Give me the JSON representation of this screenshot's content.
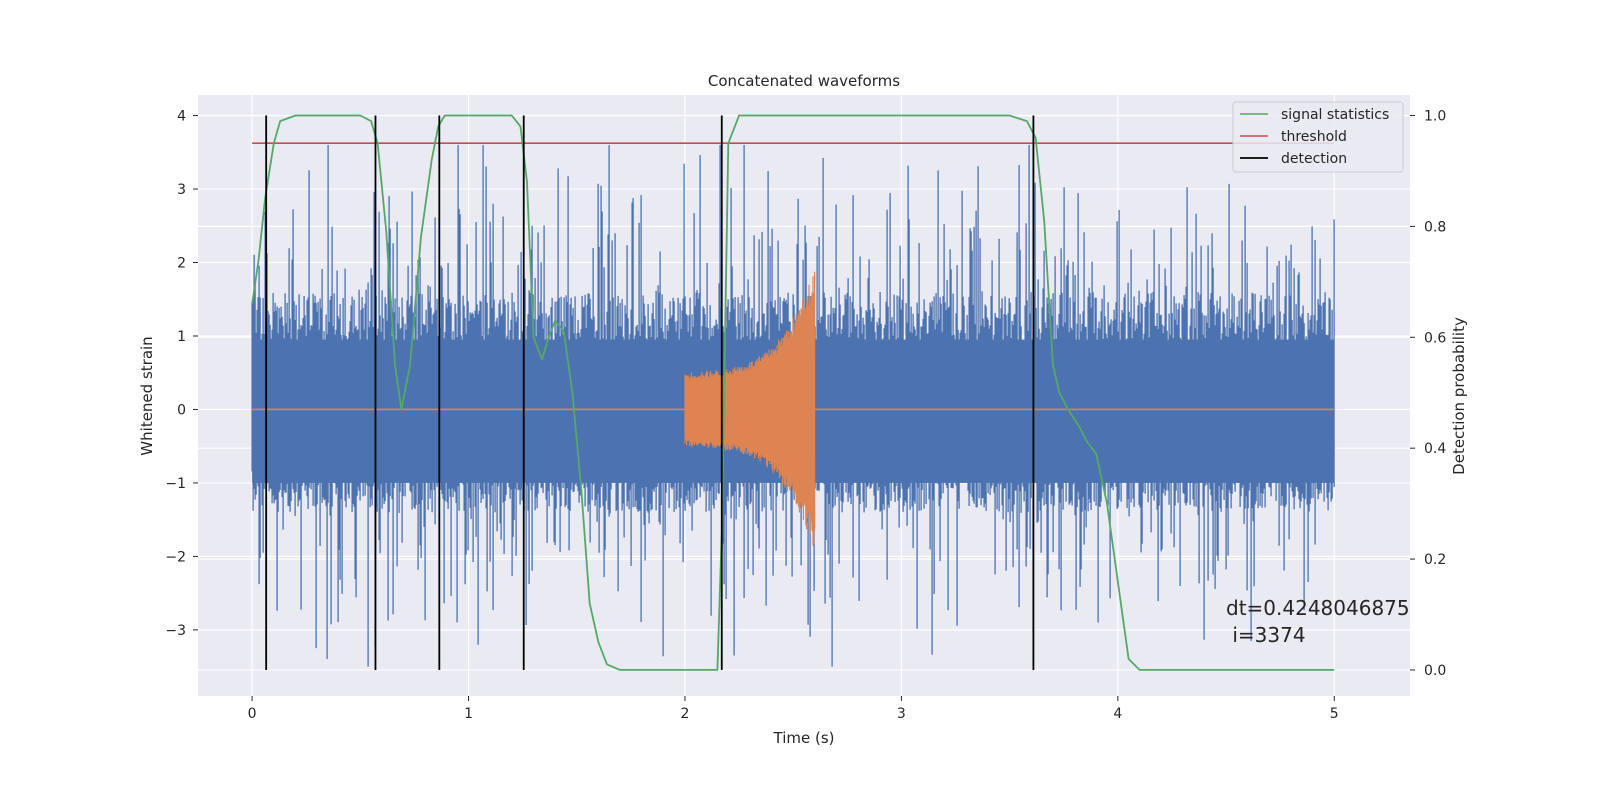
{
  "chart_data": {
    "type": "line",
    "title": "Concatenated waveforms",
    "xlabel": "Time (s)",
    "ylabel": "Whitened strain",
    "ylabel_right": "Detection probability",
    "xlim": [
      -0.25,
      5.35
    ],
    "ylim": [
      -3.9,
      4.28
    ],
    "ylim_right": [
      -0.047,
      1.037
    ],
    "x_ticks": [
      0,
      1,
      2,
      3,
      4,
      5
    ],
    "x_tick_labels": [
      "0",
      "1",
      "2",
      "3",
      "4",
      "5"
    ],
    "y_ticks": [
      4,
      3,
      2,
      1,
      0,
      -1,
      -2,
      -3
    ],
    "y_tick_labels": [
      "4",
      "3",
      "2",
      "1",
      "0",
      "−1",
      "−2",
      "−3"
    ],
    "y_right_ticks": [
      1.0,
      0.8,
      0.6,
      0.4,
      0.2,
      0.0
    ],
    "y_right_tick_labels": [
      "1.0",
      "0.8",
      "0.6",
      "0.4",
      "0.2",
      "0.0"
    ],
    "grid": true,
    "legend_position": "top-right",
    "legend": [
      {
        "label": "signal statistics",
        "color": "#55a868"
      },
      {
        "label": "threshold",
        "color": "#c44e52"
      },
      {
        "label": "detection",
        "color": "#000000"
      }
    ],
    "noise_series": {
      "name": "",
      "color": "#4c72b0",
      "x_range": [
        0,
        5
      ],
      "typical_range": [
        -1.4,
        1.6
      ],
      "extremes": [
        -3.5,
        3.6
      ]
    },
    "chirp_series": {
      "name": "",
      "color": "#dd8452",
      "x_range": [
        2.0,
        2.6
      ],
      "amplitude_start": 0.5,
      "amplitude_peak": 1.8,
      "baseline": 0.0
    },
    "signal_statistics": {
      "axis": "right",
      "x": [
        0.0,
        0.03,
        0.06,
        0.1,
        0.13,
        0.2,
        0.5,
        0.55,
        0.58,
        0.62,
        0.66,
        0.69,
        0.73,
        0.78,
        0.83,
        0.86,
        0.89,
        0.94,
        1.2,
        1.24,
        1.27,
        1.3,
        1.34,
        1.37,
        1.4,
        1.44,
        1.48,
        1.52,
        1.56,
        1.6,
        1.64,
        1.7,
        1.8,
        2.0,
        2.12,
        2.15,
        2.17,
        2.2,
        2.25,
        3.5,
        3.58,
        3.62,
        3.66,
        3.7,
        3.73,
        3.77,
        3.82,
        3.86,
        3.9,
        3.95,
        4.0,
        4.05,
        4.1,
        5.0
      ],
      "y": [
        0.66,
        0.74,
        0.85,
        0.95,
        0.99,
        1.0,
        1.0,
        0.99,
        0.95,
        0.79,
        0.55,
        0.47,
        0.55,
        0.78,
        0.92,
        0.98,
        1.0,
        1.0,
        1.0,
        0.98,
        0.88,
        0.6,
        0.56,
        0.6,
        0.63,
        0.61,
        0.5,
        0.33,
        0.12,
        0.05,
        0.01,
        0.0,
        0.0,
        0.0,
        0.0,
        0.0,
        0.25,
        0.95,
        1.0,
        1.0,
        0.99,
        0.96,
        0.81,
        0.55,
        0.5,
        0.47,
        0.44,
        0.41,
        0.39,
        0.3,
        0.16,
        0.02,
        0.0,
        0.0
      ],
      "color": "#55a868"
    },
    "threshold": {
      "axis": "right",
      "value": 0.95,
      "x_range": [
        0,
        5
      ],
      "color": "#c44e52"
    },
    "detections": {
      "x": [
        0.065,
        0.57,
        0.865,
        1.255,
        2.17,
        3.61
      ],
      "color": "#000000"
    },
    "annotation": {
      "lines": [
        "dt=0.4248046875",
        " i=3374"
      ]
    }
  }
}
